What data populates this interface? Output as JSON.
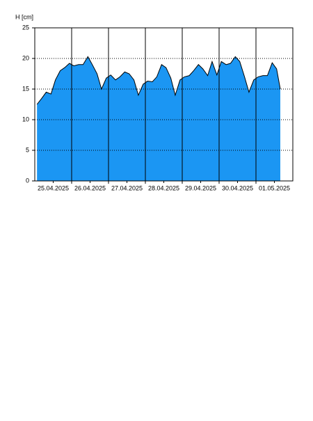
{
  "chart_data": {
    "type": "area",
    "y_label": "H [cm]",
    "color": "#1b96f3",
    "line_color": "#000000",
    "x": [
      0.06,
      0.19,
      0.31,
      0.44,
      0.56,
      0.69,
      0.81,
      0.94,
      1.06,
      1.19,
      1.31,
      1.44,
      1.56,
      1.69,
      1.81,
      1.94,
      2.06,
      2.19,
      2.31,
      2.44,
      2.56,
      2.69,
      2.81,
      2.94,
      3.06,
      3.19,
      3.31,
      3.44,
      3.56,
      3.69,
      3.81,
      3.94,
      4.06,
      4.19,
      4.31,
      4.44,
      4.56,
      4.69,
      4.81,
      4.94,
      5.06,
      5.19,
      5.31,
      5.44,
      5.56,
      5.69,
      5.81,
      5.94,
      6.06,
      6.19,
      6.31,
      6.44,
      6.56,
      6.66
    ],
    "values": [
      12.5,
      13.5,
      14.5,
      14.2,
      16.5,
      18,
      18.5,
      19.2,
      18.8,
      19,
      19,
      20.3,
      19,
      17.5,
      15,
      16.8,
      17.3,
      16.5,
      17,
      17.8,
      17.5,
      16.5,
      14,
      15.8,
      16.3,
      16.2,
      17,
      19,
      18.5,
      16.8,
      14,
      16.5,
      17,
      17.2,
      18,
      19,
      18.3,
      17.2,
      19.5,
      17.3,
      19.5,
      19,
      19.2,
      20.3,
      19.5,
      17,
      14.5,
      16.5,
      17,
      17.2,
      17.2,
      19.3,
      18.3,
      15
    ],
    "xlim": [
      0,
      7
    ],
    "xticks": [
      {
        "value": 0.5,
        "label": "25.04.2025"
      },
      {
        "value": 1.5,
        "label": "26.04.2025"
      },
      {
        "value": 2.5,
        "label": "27.04.2025"
      },
      {
        "value": 3.5,
        "label": "28.04.2025"
      },
      {
        "value": 4.5,
        "label": "29.04.2025"
      },
      {
        "value": 5.5,
        "label": "30.04.2025"
      },
      {
        "value": 6.5,
        "label": "01.05.2025"
      }
    ],
    "ylim": [
      0,
      25
    ],
    "yticks": [
      0,
      5,
      10,
      15,
      20,
      25
    ],
    "grid": true
  }
}
